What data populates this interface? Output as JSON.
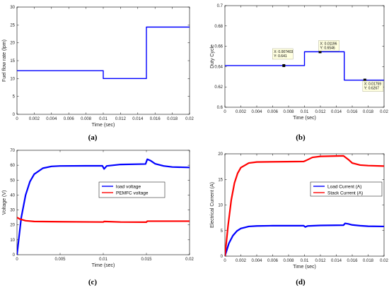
{
  "chart_data": [
    {
      "type": "line",
      "panel_label": "(a)",
      "xlabel": "Time (sec)",
      "ylabel": "Fuel flow rate (lpm)",
      "xlim": [
        0,
        0.02
      ],
      "ylim": [
        0,
        30
      ],
      "x_ticks": [
        "0",
        "0.002",
        "0.004",
        "0.006",
        "0.008",
        "0.01",
        "0.012",
        "0.014",
        "0.016",
        "0.018",
        "0.02"
      ],
      "y_ticks": [
        "0",
        "5",
        "10",
        "15",
        "20",
        "25",
        "30"
      ],
      "grid": false,
      "series": [
        {
          "color": "#0000ff",
          "points": [
            [
              0,
              12.2
            ],
            [
              0.01,
              12.2
            ],
            [
              0.01,
              10.0
            ],
            [
              0.015,
              10.0
            ],
            [
              0.015,
              24.4
            ],
            [
              0.02,
              24.4
            ]
          ]
        }
      ]
    },
    {
      "type": "line",
      "panel_label": "(b)",
      "xlabel": "Time (sec)",
      "ylabel": "Duty Cycle",
      "xlim": [
        0,
        0.02
      ],
      "ylim": [
        0.6,
        0.7
      ],
      "x_ticks": [
        "0",
        "0.002",
        "0.004",
        "0.006",
        "0.008",
        "0.01",
        "0.012",
        "0.014",
        "0.016",
        "0.018",
        "0.02"
      ],
      "y_ticks": [
        "0.6",
        "0.62",
        "0.64",
        "0.66",
        "0.68",
        "0.7"
      ],
      "grid": false,
      "series": [
        {
          "color": "#0000ff",
          "points": [
            [
              0,
              0.641
            ],
            [
              0.01,
              0.641
            ],
            [
              0.01,
              0.6546
            ],
            [
              0.015,
              0.6546
            ],
            [
              0.015,
              0.6267
            ],
            [
              0.02,
              0.6267
            ]
          ]
        }
      ],
      "data_tips": [
        {
          "x": 0.007403,
          "y": 0.641,
          "line1": "X: 0.007403",
          "line2": "Y: 0.641"
        },
        {
          "x": 0.01196,
          "y": 0.6546,
          "line1": "X: 0.01196",
          "line2": "Y: 0.6546"
        },
        {
          "x": 0.01759,
          "y": 0.6267,
          "line1": "X: 0.01759",
          "line2": "Y: 0.6267"
        }
      ]
    },
    {
      "type": "line",
      "panel_label": "(c)",
      "xlabel": "Time (sec)",
      "ylabel": "Voltage (V)",
      "xlim": [
        0,
        0.02
      ],
      "ylim": [
        0,
        70
      ],
      "x_ticks": [
        "0",
        "0.005",
        "0.01",
        "0.015",
        "0.02"
      ],
      "y_ticks": [
        "0",
        "10",
        "20",
        "30",
        "40",
        "50",
        "60",
        "70"
      ],
      "grid": false,
      "legend": "upper-right",
      "series": [
        {
          "name": "load voltage",
          "color": "#0000ff",
          "points": [
            [
              0,
              0
            ],
            [
              0.0005,
              25
            ],
            [
              0.001,
              40
            ],
            [
              0.0015,
              49
            ],
            [
              0.002,
              54
            ],
            [
              0.003,
              58
            ],
            [
              0.004,
              59.2
            ],
            [
              0.005,
              59.5
            ],
            [
              0.008,
              59.6
            ],
            [
              0.0099,
              59.6
            ],
            [
              0.0101,
              57.5
            ],
            [
              0.0104,
              59.5
            ],
            [
              0.012,
              60.5
            ],
            [
              0.0149,
              60.8
            ],
            [
              0.0151,
              64
            ],
            [
              0.0155,
              63
            ],
            [
              0.016,
              61
            ],
            [
              0.017,
              59.5
            ],
            [
              0.018,
              58.8
            ],
            [
              0.02,
              58.5
            ]
          ]
        },
        {
          "name": "PEMFC voltage",
          "color": "#ff0000",
          "points": [
            [
              0,
              25
            ],
            [
              0.0003,
              24
            ],
            [
              0.001,
              22.8
            ],
            [
              0.002,
              22.3
            ],
            [
              0.005,
              22.1
            ],
            [
              0.01,
              21.9
            ],
            [
              0.0101,
              22.3
            ],
            [
              0.012,
              21.9
            ],
            [
              0.015,
              21.8
            ],
            [
              0.0151,
              22.5
            ],
            [
              0.017,
              22.5
            ],
            [
              0.02,
              22.5
            ]
          ]
        }
      ]
    },
    {
      "type": "line",
      "panel_label": "(d)",
      "xlabel": "Time (sec)",
      "ylabel": "Electrical Current (A)",
      "xlim": [
        0,
        0.02
      ],
      "ylim": [
        0,
        20
      ],
      "x_ticks": [
        "0",
        "0.002",
        "0.004",
        "0.006",
        "0.008",
        "0.01",
        "0.012",
        "0.014",
        "0.016",
        "0.018",
        "0.02"
      ],
      "y_ticks": [
        "0",
        "5",
        "10",
        "15",
        "20"
      ],
      "grid": false,
      "legend": "right",
      "series": [
        {
          "name": "Load Current (A)",
          "color": "#0000ff",
          "points": [
            [
              0,
              0
            ],
            [
              0.0005,
              2.5
            ],
            [
              0.001,
              4.0
            ],
            [
              0.0015,
              4.9
            ],
            [
              0.002,
              5.4
            ],
            [
              0.003,
              5.8
            ],
            [
              0.004,
              5.9
            ],
            [
              0.006,
              5.95
            ],
            [
              0.0099,
              5.95
            ],
            [
              0.0101,
              5.7
            ],
            [
              0.0104,
              5.9
            ],
            [
              0.012,
              6.0
            ],
            [
              0.0149,
              6.05
            ],
            [
              0.0151,
              6.4
            ],
            [
              0.0155,
              6.3
            ],
            [
              0.016,
              6.1
            ],
            [
              0.017,
              5.95
            ],
            [
              0.018,
              5.85
            ],
            [
              0.02,
              5.8
            ]
          ]
        },
        {
          "name": "Stack Current (A)",
          "color": "#ff0000",
          "points": [
            [
              0,
              0
            ],
            [
              0.0004,
              6
            ],
            [
              0.0008,
              11
            ],
            [
              0.0012,
              14.3
            ],
            [
              0.0016,
              16.2
            ],
            [
              0.002,
              17.3
            ],
            [
              0.003,
              18.2
            ],
            [
              0.004,
              18.4
            ],
            [
              0.0099,
              18.5
            ],
            [
              0.0102,
              18.7
            ],
            [
              0.011,
              19.3
            ],
            [
              0.012,
              19.5
            ],
            [
              0.0149,
              19.6
            ],
            [
              0.0155,
              18.9
            ],
            [
              0.016,
              18.2
            ],
            [
              0.017,
              17.8
            ],
            [
              0.018,
              17.7
            ],
            [
              0.02,
              17.6
            ]
          ]
        }
      ]
    }
  ]
}
